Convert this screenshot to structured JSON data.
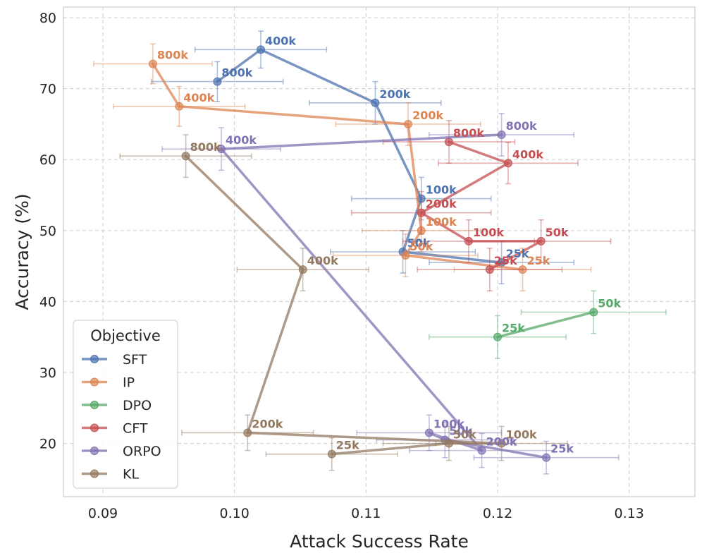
{
  "chart_data": {
    "type": "scatter",
    "xlabel": "Attack Success Rate",
    "ylabel": "Accuracy (%)",
    "xlim": [
      0.087,
      0.135
    ],
    "ylim": [
      12.5,
      81.5
    ],
    "xticks": [
      0.09,
      0.1,
      0.11,
      0.12,
      0.13
    ],
    "xtick_labels": [
      "0.09",
      "0.10",
      "0.11",
      "0.12",
      "0.13"
    ],
    "yticks": [
      20,
      30,
      40,
      50,
      60,
      70,
      80
    ],
    "ytick_labels": [
      "20",
      "30",
      "40",
      "50",
      "60",
      "70",
      "80"
    ],
    "grid": true,
    "legend": {
      "title": "Objective",
      "placement": "bottom-left"
    },
    "series": [
      {
        "name": "SFT",
        "color": "#4c72b0",
        "points": [
          {
            "label": "25k",
            "x": 0.1203,
            "y": 45.5,
            "xerr": 0.0055,
            "yerr": 3.0
          },
          {
            "label": "50k",
            "x": 0.1128,
            "y": 47.0,
            "xerr": 0.0055,
            "yerr": 3.0
          },
          {
            "label": "100k",
            "x": 0.1142,
            "y": 54.5,
            "xerr": 0.0053,
            "yerr": 3.0
          },
          {
            "label": "200k",
            "x": 0.1107,
            "y": 68.0,
            "xerr": 0.005,
            "yerr": 3.0
          },
          {
            "label": "400k",
            "x": 0.102,
            "y": 75.5,
            "xerr": 0.005,
            "yerr": 2.6
          },
          {
            "label": "800k",
            "x": 0.0987,
            "y": 71.0,
            "xerr": 0.005,
            "yerr": 2.8
          }
        ]
      },
      {
        "name": "IP",
        "color": "#dd8452",
        "points": [
          {
            "label": "25k",
            "x": 0.1219,
            "y": 44.5,
            "xerr": 0.0052,
            "yerr": 3.0
          },
          {
            "label": "50k",
            "x": 0.113,
            "y": 46.5,
            "xerr": 0.0055,
            "yerr": 3.0
          },
          {
            "label": "100k",
            "x": 0.1142,
            "y": 50.0,
            "xerr": 0.0045,
            "yerr": 3.0
          },
          {
            "label": "200k",
            "x": 0.1132,
            "y": 65.0,
            "xerr": 0.0055,
            "yerr": 3.0
          },
          {
            "label": "400k",
            "x": 0.0958,
            "y": 67.5,
            "xerr": 0.005,
            "yerr": 2.8
          },
          {
            "label": "800k",
            "x": 0.0938,
            "y": 73.5,
            "xerr": 0.0045,
            "yerr": 2.8
          }
        ]
      },
      {
        "name": "DPO",
        "color": "#55a868",
        "points": [
          {
            "label": "25k",
            "x": 0.12,
            "y": 35.0,
            "xerr": 0.0052,
            "yerr": 3.0
          },
          {
            "label": "50k",
            "x": 0.1273,
            "y": 38.5,
            "xerr": 0.0055,
            "yerr": 3.0
          }
        ]
      },
      {
        "name": "CFT",
        "color": "#c44e52",
        "points": [
          {
            "label": "25k",
            "x": 0.1194,
            "y": 44.5,
            "xerr": 0.0055,
            "yerr": 3.0
          },
          {
            "label": "50k",
            "x": 0.1233,
            "y": 48.5,
            "xerr": 0.0053,
            "yerr": 3.0
          },
          {
            "label": "100k",
            "x": 0.1178,
            "y": 48.5,
            "xerr": 0.005,
            "yerr": 3.0
          },
          {
            "label": "200k",
            "x": 0.1142,
            "y": 52.5,
            "xerr": 0.0053,
            "yerr": 3.0
          },
          {
            "label": "400k",
            "x": 0.1208,
            "y": 59.5,
            "xerr": 0.0053,
            "yerr": 2.9
          },
          {
            "label": "800k",
            "x": 0.1163,
            "y": 62.5,
            "xerr": 0.005,
            "yerr": 3.0
          }
        ]
      },
      {
        "name": "ORPO",
        "color": "#8172b3",
        "points": [
          {
            "label": "25k",
            "x": 0.1237,
            "y": 18.0,
            "xerr": 0.0055,
            "yerr": 2.3
          },
          {
            "label": "50k",
            "x": 0.116,
            "y": 20.5,
            "xerr": 0.0052,
            "yerr": 2.5
          },
          {
            "label": "100k",
            "x": 0.1148,
            "y": 21.5,
            "xerr": 0.0055,
            "yerr": 2.5
          },
          {
            "label": "200k",
            "x": 0.1188,
            "y": 19.0,
            "xerr": 0.0055,
            "yerr": 2.4
          },
          {
            "label": "400k",
            "x": 0.099,
            "y": 61.5,
            "xerr": 0.0045,
            "yerr": 3.0
          },
          {
            "label": "800k",
            "x": 0.1203,
            "y": 63.5,
            "xerr": 0.0055,
            "yerr": 3.0
          }
        ]
      },
      {
        "name": "KL",
        "color": "#937860",
        "points": [
          {
            "label": "25k",
            "x": 0.1074,
            "y": 18.5,
            "xerr": 0.005,
            "yerr": 2.3
          },
          {
            "label": "50k",
            "x": 0.1163,
            "y": 20.0,
            "xerr": 0.005,
            "yerr": 2.4
          },
          {
            "label": "100k",
            "x": 0.1203,
            "y": 20.0,
            "xerr": 0.005,
            "yerr": 2.4
          },
          {
            "label": "200k",
            "x": 0.101,
            "y": 21.5,
            "xerr": 0.005,
            "yerr": 2.5
          },
          {
            "label": "400k",
            "x": 0.1052,
            "y": 44.5,
            "xerr": 0.005,
            "yerr": 3.0
          },
          {
            "label": "800k",
            "x": 0.0963,
            "y": 60.5,
            "xerr": 0.005,
            "yerr": 3.0
          }
        ]
      }
    ]
  }
}
